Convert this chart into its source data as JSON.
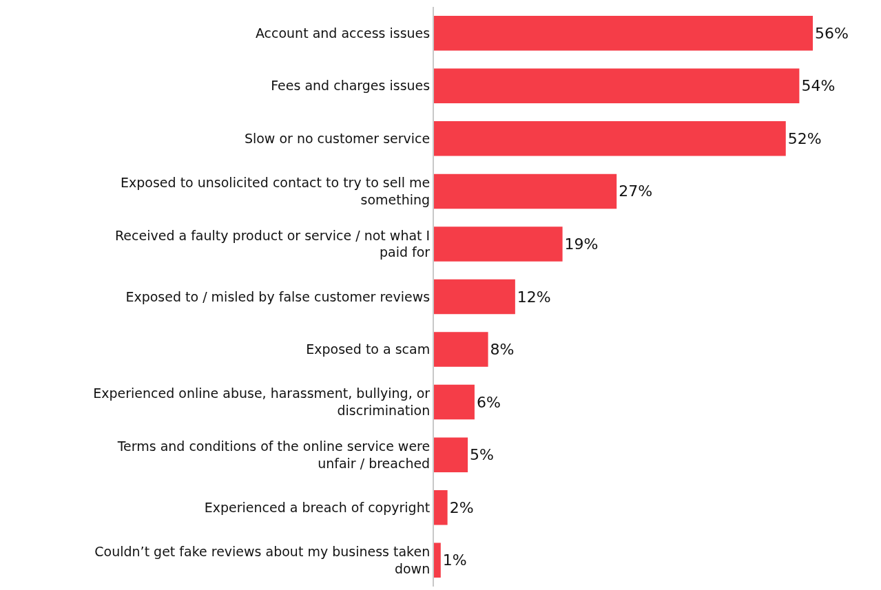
{
  "chart_data": {
    "type": "bar",
    "orientation": "horizontal",
    "categories": [
      "Account and access issues",
      "Fees and charges issues",
      "Slow or no customer service",
      "Exposed to unsolicited contact to try to sell me something",
      "Received a faulty product or service / not what I paid for",
      "Exposed to / misled by false customer reviews",
      "Exposed to a scam",
      "Experienced online abuse, harassment, bullying, or discrimination",
      "Terms and conditions of the online service were unfair / breached",
      "Experienced a breach of copyright",
      "Couldn’t get fake reviews about my business taken down"
    ],
    "values": [
      56,
      54,
      52,
      27,
      19,
      12,
      8,
      6,
      5,
      2,
      1
    ],
    "value_labels": [
      "56%",
      "54%",
      "52%",
      "27%",
      "19%",
      "12%",
      "8%",
      "6%",
      "5%",
      "2%",
      "1%"
    ],
    "color": "#f53d48",
    "tick_labels": "y"
  }
}
